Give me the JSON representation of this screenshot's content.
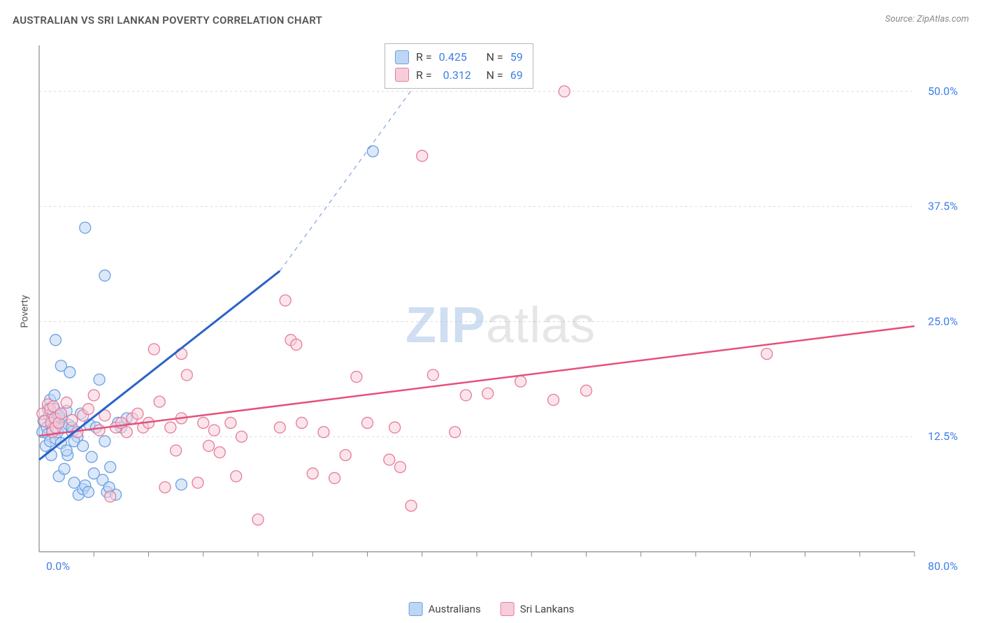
{
  "title": "AUSTRALIAN VS SRI LANKAN POVERTY CORRELATION CHART",
  "source": "Source: ZipAtlas.com",
  "y_axis_label": "Poverty",
  "watermark_a": "ZIP",
  "watermark_b": "atlas",
  "chart": {
    "type": "scatter",
    "xlim": [
      0,
      80
    ],
    "ylim": [
      0,
      55
    ],
    "x_tick_label_min": "0.0%",
    "x_tick_label_max": "80.0%",
    "x_tick_color": "#3f7fe8",
    "y_ticks": [
      12.5,
      25.0,
      37.5,
      50.0
    ],
    "y_tick_labels": [
      "12.5%",
      "25.0%",
      "37.5%",
      "50.0%"
    ],
    "y_tick_color": "#3f7fe8",
    "x_minor_ticks": [
      5,
      10,
      15,
      20,
      25,
      30,
      35,
      40,
      45,
      50,
      55,
      60,
      65,
      70,
      75,
      80
    ],
    "grid_color": "#d8d8d8",
    "axis_color": "#888888",
    "background_color": "#ffffff",
    "series": [
      {
        "name": "Australians",
        "color_fill": "#bdd6f5",
        "color_stroke": "#6aa0e0",
        "line_color": "#2b62c9",
        "marker_radius": 8,
        "R": "0.425",
        "N": "59",
        "trend": {
          "x1": 0,
          "y1": 10,
          "x2": 22,
          "y2": 30.5,
          "dash_x2": 37,
          "dash_y2": 55
        },
        "points": [
          [
            0.3,
            13
          ],
          [
            0.4,
            14.2
          ],
          [
            0.6,
            11.5
          ],
          [
            0.7,
            13.5
          ],
          [
            0.8,
            12.8
          ],
          [
            0.9,
            14.8
          ],
          [
            1,
            16.5
          ],
          [
            1,
            12
          ],
          [
            1.1,
            10.5
          ],
          [
            1.2,
            13.2
          ],
          [
            1.3,
            14
          ],
          [
            1.4,
            15.5
          ],
          [
            1.5,
            23
          ],
          [
            1.5,
            12.3
          ],
          [
            1.6,
            14.5
          ],
          [
            1.7,
            13
          ],
          [
            1.8,
            8.2
          ],
          [
            2,
            11.8
          ],
          [
            2,
            20.2
          ],
          [
            2.1,
            14.5
          ],
          [
            2.2,
            13.5
          ],
          [
            2.3,
            9
          ],
          [
            2.5,
            15.3
          ],
          [
            2.6,
            10.5
          ],
          [
            2.7,
            13.8
          ],
          [
            2.8,
            19.5
          ],
          [
            3,
            13
          ],
          [
            3.2,
            7.5
          ],
          [
            3.5,
            12.5
          ],
          [
            3.6,
            6.2
          ],
          [
            3.8,
            15
          ],
          [
            4,
            6.8
          ],
          [
            4.2,
            7.2
          ],
          [
            4.5,
            6.5
          ],
          [
            4.6,
            13.8
          ],
          [
            4.8,
            10.3
          ],
          [
            5,
            8.5
          ],
          [
            5.2,
            13.5
          ],
          [
            5.5,
            18.7
          ],
          [
            5.8,
            7.8
          ],
          [
            6,
            30
          ],
          [
            6.2,
            6.5
          ],
          [
            6.4,
            7
          ],
          [
            6.5,
            9.2
          ],
          [
            7,
            6.2
          ],
          [
            7.2,
            14
          ],
          [
            7.5,
            13.5
          ],
          [
            8,
            14.5
          ],
          [
            4.2,
            35.2
          ],
          [
            13,
            7.3
          ],
          [
            3,
            13.5
          ],
          [
            3.2,
            12
          ],
          [
            1.8,
            14.8
          ],
          [
            2.5,
            11
          ],
          [
            4,
            11.5
          ],
          [
            6,
            12
          ],
          [
            1.4,
            17
          ],
          [
            0.8,
            15.5
          ],
          [
            30.5,
            43.5
          ]
        ]
      },
      {
        "name": "Sri Lankans",
        "color_fill": "#f7cdd9",
        "color_stroke": "#e57c9b",
        "line_color": "#e3527a",
        "marker_radius": 8,
        "R": "0.312",
        "N": "69",
        "trend": {
          "x1": 0,
          "y1": 12.6,
          "x2": 80,
          "y2": 24.5
        },
        "points": [
          [
            0.3,
            15
          ],
          [
            0.5,
            14.2
          ],
          [
            0.8,
            16
          ],
          [
            1,
            15.5
          ],
          [
            1.1,
            14
          ],
          [
            1.2,
            13
          ],
          [
            1.3,
            15.8
          ],
          [
            1.4,
            14.5
          ],
          [
            1.5,
            13.5
          ],
          [
            1.8,
            14
          ],
          [
            2,
            15
          ],
          [
            2.5,
            16.2
          ],
          [
            3,
            14.3
          ],
          [
            3.5,
            13
          ],
          [
            4,
            14.8
          ],
          [
            4.5,
            15.5
          ],
          [
            5,
            17
          ],
          [
            5.5,
            13.2
          ],
          [
            6,
            14.8
          ],
          [
            6.5,
            6
          ],
          [
            7,
            13.5
          ],
          [
            7.5,
            14
          ],
          [
            8,
            13
          ],
          [
            8.5,
            14.5
          ],
          [
            9,
            15
          ],
          [
            9.5,
            13.5
          ],
          [
            10,
            14
          ],
          [
            10.5,
            22
          ],
          [
            11,
            16.3
          ],
          [
            11.5,
            7
          ],
          [
            12,
            13.5
          ],
          [
            12.5,
            11
          ],
          [
            13,
            14.5
          ],
          [
            13.5,
            19.2
          ],
          [
            14.5,
            7.5
          ],
          [
            15,
            14
          ],
          [
            15.5,
            11.5
          ],
          [
            16,
            13.2
          ],
          [
            16.5,
            10.8
          ],
          [
            17.5,
            14
          ],
          [
            18,
            8.2
          ],
          [
            18.5,
            12.5
          ],
          [
            20,
            3.5
          ],
          [
            22,
            13.5
          ],
          [
            22.5,
            27.3
          ],
          [
            23,
            23
          ],
          [
            23.5,
            22.5
          ],
          [
            24,
            14
          ],
          [
            25,
            8.5
          ],
          [
            26,
            13
          ],
          [
            27,
            8
          ],
          [
            28,
            10.5
          ],
          [
            29,
            19
          ],
          [
            30,
            14
          ],
          [
            32,
            10
          ],
          [
            32.5,
            13.5
          ],
          [
            33,
            9.2
          ],
          [
            34,
            5
          ],
          [
            35,
            43
          ],
          [
            36,
            19.2
          ],
          [
            38,
            13
          ],
          [
            39,
            17
          ],
          [
            41,
            17.2
          ],
          [
            44,
            18.5
          ],
          [
            47,
            16.5
          ],
          [
            48,
            50
          ],
          [
            50,
            17.5
          ],
          [
            66.5,
            21.5
          ],
          [
            13,
            21.5
          ]
        ]
      }
    ]
  },
  "legend": {
    "items": [
      {
        "label": "Australians",
        "fill": "#bdd6f5",
        "stroke": "#6aa0e0"
      },
      {
        "label": "Sri Lankans",
        "fill": "#f7cdd9",
        "stroke": "#e57c9b"
      }
    ]
  }
}
